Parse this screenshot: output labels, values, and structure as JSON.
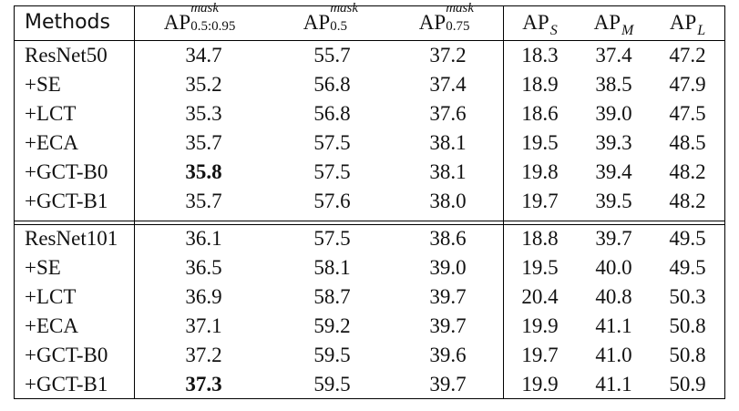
{
  "header": {
    "methods": "Methods",
    "ap": "AP",
    "col1_sup": "mask",
    "col1_sub": "0.5:0.95",
    "col2_sup": "mask",
    "col2_sub": "0.5",
    "col3_sup": "mask",
    "col3_sub": "0.75",
    "col4_sub": "S",
    "col5_sub": "M",
    "col6_sub": "L"
  },
  "groups": [
    {
      "rows": [
        {
          "method": "ResNet50",
          "v": [
            "34.7",
            "55.7",
            "37.2",
            "18.3",
            "37.4",
            "47.2"
          ]
        },
        {
          "method": "+SE",
          "v": [
            "35.2",
            "56.8",
            "37.4",
            "18.9",
            "38.5",
            "47.9"
          ]
        },
        {
          "method": "+LCT",
          "v": [
            "35.3",
            "56.8",
            "37.6",
            "18.6",
            "39.0",
            "47.5"
          ]
        },
        {
          "method": "+ECA",
          "v": [
            "35.7",
            "57.5",
            "38.1",
            "19.5",
            "39.3",
            "48.5"
          ]
        },
        {
          "method": "+GCT-B0",
          "v": [
            "35.8",
            "57.5",
            "38.1",
            "19.8",
            "39.4",
            "48.2"
          ]
        },
        {
          "method": "+GCT-B1",
          "v": [
            "35.7",
            "57.6",
            "38.0",
            "19.7",
            "39.5",
            "48.2"
          ]
        }
      ]
    },
    {
      "rows": [
        {
          "method": "ResNet101",
          "v": [
            "36.1",
            "57.5",
            "38.6",
            "18.8",
            "39.7",
            "49.5"
          ]
        },
        {
          "method": "+SE",
          "v": [
            "36.5",
            "58.1",
            "39.0",
            "19.5",
            "40.0",
            "49.5"
          ]
        },
        {
          "method": "+LCT",
          "v": [
            "36.9",
            "58.7",
            "39.7",
            "20.4",
            "40.8",
            "50.3"
          ]
        },
        {
          "method": "+ECA",
          "v": [
            "37.1",
            "59.2",
            "39.7",
            "19.9",
            "41.1",
            "50.8"
          ]
        },
        {
          "method": "+GCT-B0",
          "v": [
            "37.2",
            "59.5",
            "39.6",
            "19.7",
            "41.0",
            "50.8"
          ]
        },
        {
          "method": "+GCT-B1",
          "v": [
            "37.3",
            "59.5",
            "39.7",
            "19.9",
            "41.1",
            "50.9"
          ]
        }
      ]
    }
  ]
}
